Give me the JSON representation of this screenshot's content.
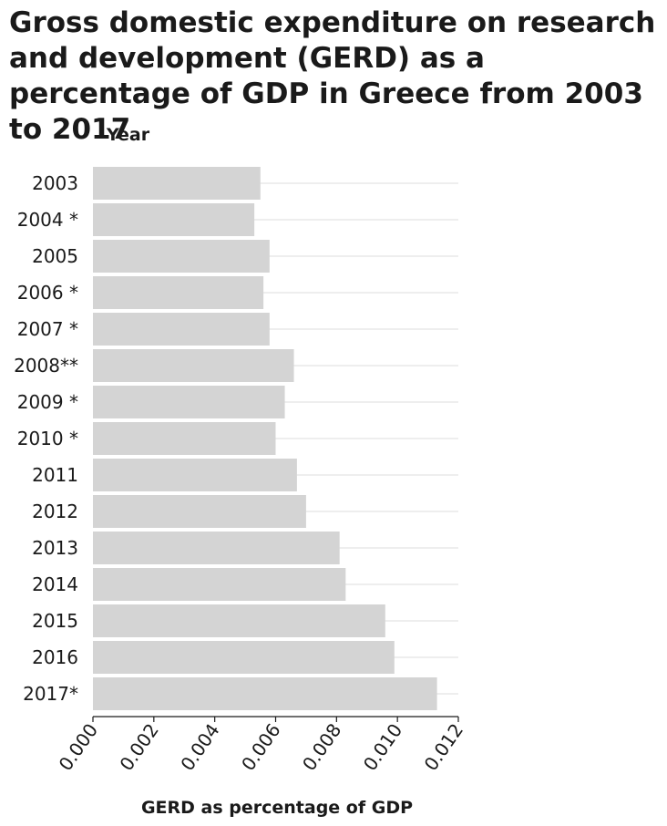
{
  "chart_data": {
    "type": "bar",
    "orientation": "horizontal",
    "title": "Gross domestic expenditure on research and development (GERD) as a percentage of GDP in Greece from 2003 to 2017",
    "ylabel": "Year",
    "xlabel": "GERD as percentage of GDP",
    "categories": [
      "2003",
      "2004 *",
      "2005",
      "2006 *",
      "2007 *",
      "2008**",
      "2009 *",
      "2010 *",
      "2011",
      "2012",
      "2013",
      "2014",
      "2015",
      "2016",
      "2017*"
    ],
    "values": [
      0.0055,
      0.0053,
      0.0058,
      0.0056,
      0.0058,
      0.0066,
      0.0063,
      0.006,
      0.0067,
      0.007,
      0.0081,
      0.0083,
      0.0096,
      0.0099,
      0.0113
    ],
    "xlim": [
      0,
      0.012
    ],
    "xticks": [
      "0.000",
      "0.002",
      "0.004",
      "0.006",
      "0.008",
      "0.010",
      "0.012"
    ],
    "grid": true,
    "bar_color": "#d4d4d4",
    "grid_color": "#dddddd"
  }
}
